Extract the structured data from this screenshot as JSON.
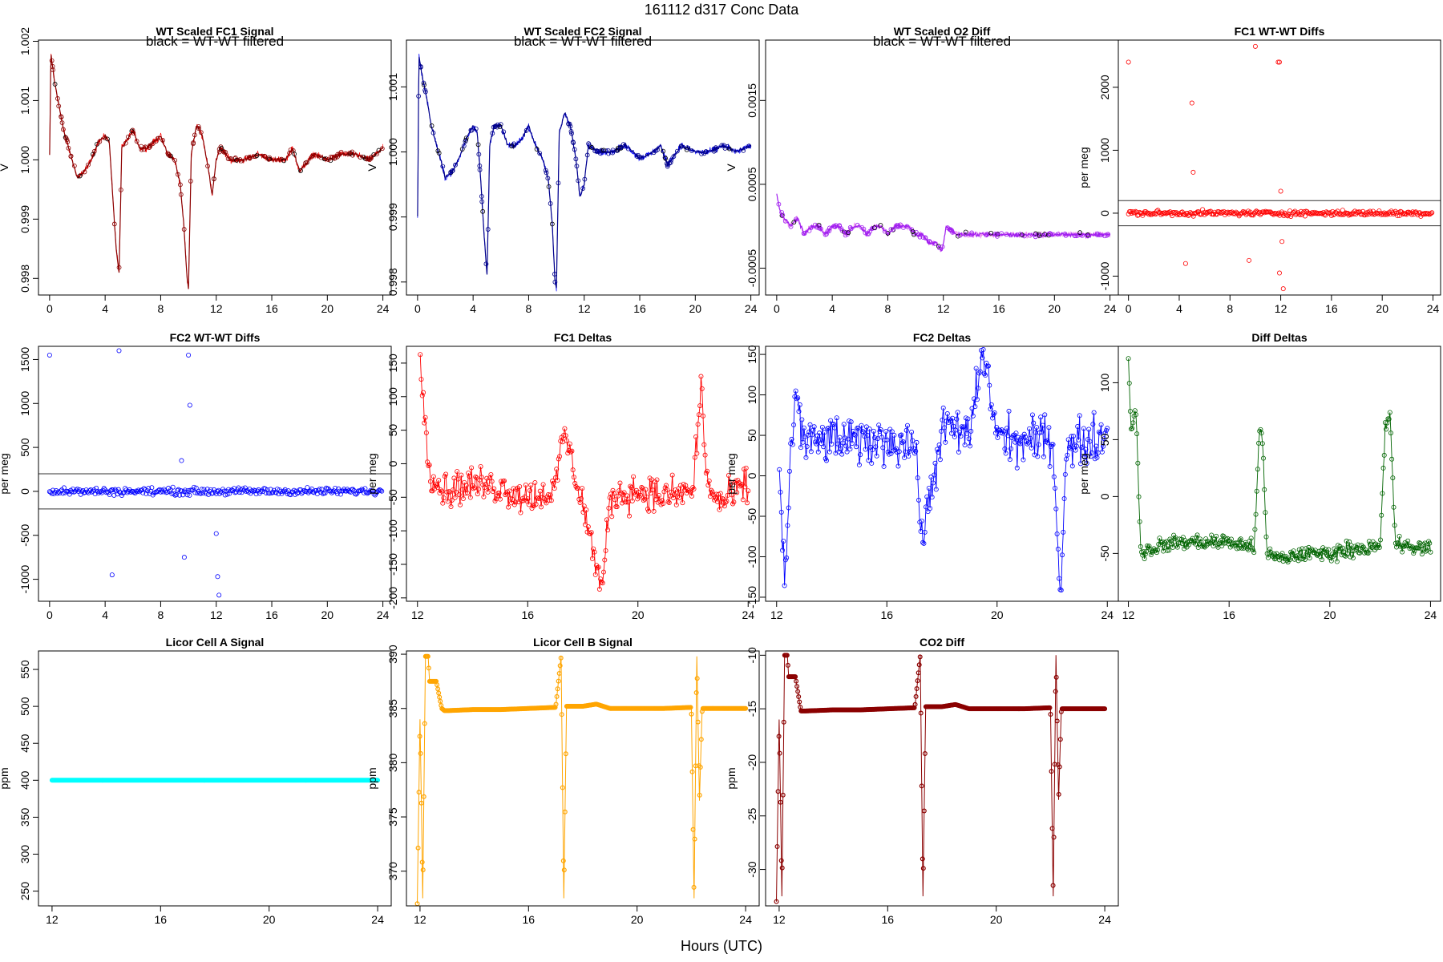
{
  "figure": {
    "title": "161112   d317   Conc Data",
    "x_axis_label": "Hours (UTC)"
  },
  "chart_data": [
    {
      "id": "fc1-signal",
      "type": "line",
      "title": "WT Scaled FC1 Signal",
      "annotation": "black = WT-WT filtered",
      "ylabel": "V",
      "xlim": [
        -0.8,
        24.6
      ],
      "ylim": [
        0.99772,
        1.00202
      ],
      "xticks": [
        0,
        4,
        8,
        12,
        16,
        20,
        24
      ],
      "yticks": [
        0.998,
        0.999,
        1.0,
        1.001,
        1.002
      ],
      "ytick_labels": [
        "0.998",
        "0.999",
        "1.000",
        "1.001",
        "1.002"
      ],
      "colors": {
        "line": "#ff0000",
        "points": "#8b0000",
        "filtered": "#000000"
      },
      "series": [
        {
          "name": "signal",
          "x": [
            0.0,
            0.1,
            0.3,
            0.6,
            1.0,
            1.5,
            2.0,
            2.5,
            3.0,
            3.5,
            4.0,
            4.3,
            4.6,
            4.8,
            5.0,
            5.2,
            5.5,
            6.0,
            6.5,
            7.0,
            7.5,
            8.0,
            8.5,
            9.0,
            9.4,
            9.7,
            9.9,
            10.0,
            10.2,
            10.6,
            11.0,
            11.4,
            11.7,
            12.0,
            12.3,
            13.0,
            14.0,
            15.0,
            16.0,
            17.0,
            17.5,
            18.0,
            19.0,
            20.0,
            21.0,
            22.0,
            23.0,
            24.0
          ],
          "y": [
            1.0001,
            1.0018,
            1.0014,
            1.001,
            1.0005,
            1.0001,
            0.9997,
            0.9998,
            1.0,
            1.0003,
            1.0004,
            1.0003,
            0.9992,
            0.9985,
            0.9981,
            1.0002,
            1.0003,
            1.0005,
            1.0002,
            1.0002,
            1.0003,
            1.0004,
            1.0001,
            1.0,
            0.9996,
            0.9988,
            0.998,
            0.9978,
            1.0001,
            1.0006,
            1.0004,
            0.9999,
            0.9994,
            1.0,
            1.0002,
            1.0,
            1.0,
            1.0001,
            1.0,
            1.0,
            1.0002,
            0.9998,
            1.0001,
            1.0,
            1.0001,
            1.0001,
            1.0,
            1.0002
          ]
        }
      ]
    },
    {
      "id": "fc2-signal",
      "type": "line",
      "title": "WT Scaled FC2 Signal",
      "annotation": "black = WT-WT filtered",
      "ylabel": "V",
      "xlim": [
        -0.8,
        24.6
      ],
      "ylim": [
        0.9978,
        1.00172
      ],
      "xticks": [
        0,
        4,
        8,
        12,
        16,
        20,
        24
      ],
      "yticks": [
        0.998,
        0.999,
        1.0,
        1.001
      ],
      "ytick_labels": [
        "0.998",
        "0.999",
        "1.000",
        "1.001"
      ],
      "colors": {
        "line": "#0000ff",
        "points": "#00008b",
        "filtered": "#000000"
      },
      "series": [
        {
          "name": "signal",
          "x": [
            0.0,
            0.1,
            0.3,
            0.6,
            1.0,
            1.5,
            2.0,
            2.5,
            3.0,
            3.5,
            4.0,
            4.3,
            4.6,
            4.8,
            5.0,
            5.2,
            5.5,
            6.0,
            6.5,
            7.0,
            7.5,
            8.0,
            8.5,
            9.0,
            9.4,
            9.7,
            9.9,
            10.0,
            10.2,
            10.6,
            11.0,
            11.4,
            11.7,
            12.0,
            12.3,
            13.0,
            14.0,
            15.0,
            16.0,
            17.0,
            17.5,
            18.0,
            19.0,
            20.0,
            21.0,
            22.0,
            23.0,
            24.0
          ],
          "y": [
            0.999,
            1.0015,
            1.0012,
            1.0009,
            1.0004,
            1.0,
            0.9996,
            0.9997,
            0.9999,
            1.0002,
            1.0004,
            1.0003,
            0.9994,
            0.9987,
            0.9981,
            1.0001,
            1.0004,
            1.0004,
            1.0001,
            1.0001,
            1.0002,
            1.0004,
            1.0001,
            0.9999,
            0.9996,
            0.9989,
            0.998,
            0.9979,
            1.0003,
            1.0006,
            1.0004,
            0.9999,
            0.9993,
            0.9995,
            1.0001,
            1.0,
            1.0,
            1.0001,
            0.9999,
            1.0,
            1.0001,
            0.9998,
            1.0001,
            1.0,
            1.0,
            1.0001,
            1.0,
            1.0001
          ]
        }
      ]
    },
    {
      "id": "o2-diff",
      "type": "line",
      "title": "WT Scaled O2 Diff",
      "annotation": "black = WT-WT filtered",
      "ylabel": "V",
      "xlim": [
        -0.8,
        24.6
      ],
      "ylim": [
        -0.00082,
        0.00222
      ],
      "xticks": [
        0,
        4,
        8,
        12,
        16,
        20,
        24
      ],
      "yticks": [
        -0.0005,
        0.0005,
        0.0015
      ],
      "ytick_labels": [
        "-0.0005",
        "0.0005",
        "0.0015"
      ],
      "colors": {
        "line": "#ee82ee",
        "points": "#a020f0",
        "filtered": "#000000"
      },
      "series": [
        {
          "name": "signal",
          "x": [
            0.0,
            0.2,
            0.5,
            1.0,
            1.5,
            2.0,
            2.5,
            3.0,
            3.5,
            4.0,
            4.5,
            5.0,
            5.5,
            6.0,
            6.5,
            7.0,
            7.5,
            8.0,
            8.5,
            9.0,
            9.5,
            10.0,
            10.5,
            11.0,
            11.5,
            11.9,
            12.2,
            13.0,
            14.0,
            15.0,
            16.0,
            17.0,
            18.0,
            19.0,
            20.0,
            21.0,
            22.0,
            23.0,
            24.0
          ],
          "y": [
            0.0004,
            0.0002,
            0.0001,
            0.0,
            0.0001,
            -0.0001,
            0.0,
            0.0,
            -0.0001,
            0.0,
            0.0,
            -0.0001,
            0.0,
            0.0,
            -0.0001,
            0.0,
            0.0,
            -0.0001,
            0.0,
            0.0,
            0.0,
            -0.0001,
            -0.0001,
            -0.0002,
            -0.0002,
            -0.0003,
            0.0,
            -0.0001,
            -0.0001,
            -0.0001,
            -0.0001,
            -0.0001,
            -0.0001,
            -0.0001,
            -0.0001,
            -0.0001,
            -0.0001,
            -0.0001,
            -0.0001
          ]
        }
      ]
    },
    {
      "id": "fc1-wtwt",
      "type": "scatter",
      "title": "FC1 WT-WT Diffs",
      "ylabel": "per meg",
      "xlim": [
        -0.8,
        24.6
      ],
      "ylim": [
        -1300,
        2750
      ],
      "xticks": [
        0,
        4,
        8,
        12,
        16,
        20,
        24
      ],
      "yticks": [
        -1000,
        0,
        1000,
        2000
      ],
      "ytick_labels": [
        "-1000",
        "0",
        "1000",
        "2000"
      ],
      "hlines": [
        200,
        -200
      ],
      "colors": {
        "points": "#ff0000"
      },
      "outliers_x": [
        0.0,
        4.5,
        5.0,
        5.1,
        9.5,
        10.0,
        11.8,
        11.9,
        12.0,
        12.1,
        12.2,
        11.9
      ],
      "outliers_y": [
        2400,
        -800,
        1750,
        650,
        -750,
        2650,
        2400,
        2400,
        350,
        -450,
        -1200,
        -950
      ]
    },
    {
      "id": "fc2-wtwt",
      "type": "scatter",
      "title": "FC2 WT-WT Diffs",
      "ylabel": "per meg",
      "xlim": [
        -0.8,
        24.6
      ],
      "ylim": [
        -1250,
        1650
      ],
      "xticks": [
        0,
        4,
        8,
        12,
        16,
        20,
        24
      ],
      "yticks": [
        -1000,
        -500,
        0,
        500,
        1000,
        1500
      ],
      "ytick_labels": [
        "-1000",
        "-500",
        "0",
        "500",
        "1000",
        "1500"
      ],
      "hlines": [
        200,
        -200
      ],
      "colors": {
        "points": "#0000ff"
      },
      "outliers_x": [
        0.0,
        4.5,
        5.0,
        9.5,
        9.7,
        10.0,
        10.1,
        12.0,
        12.1,
        12.2
      ],
      "outliers_y": [
        1550,
        -950,
        1600,
        350,
        -750,
        1550,
        980,
        -480,
        -970,
        -1180
      ]
    },
    {
      "id": "fc1-deltas",
      "type": "line",
      "title": "FC1 Deltas",
      "ylabel": "per meg",
      "xlim": [
        11.6,
        24.4
      ],
      "ylim": [
        -205,
        175
      ],
      "xticks": [
        12,
        16,
        20,
        24
      ],
      "yticks": [
        -200,
        -150,
        -100,
        -50,
        0,
        50,
        100,
        150
      ],
      "ytick_labels": [
        "-200",
        "-150",
        "-100",
        "-50",
        "0",
        "50",
        "100",
        "150"
      ],
      "colors": {
        "line": "#ff0000"
      },
      "keypoints_x": [
        12.1,
        12.2,
        12.3,
        12.5,
        13.0,
        14.0,
        15.0,
        16.0,
        17.0,
        17.3,
        18.0,
        18.7,
        19.0,
        20.0,
        21.0,
        22.0,
        22.3,
        22.5,
        23.0,
        24.0
      ],
      "keypoints_y": [
        165,
        100,
        60,
        -20,
        -40,
        -30,
        -35,
        -50,
        -40,
        50,
        -60,
        -190,
        -50,
        -40,
        -50,
        -40,
        120,
        -30,
        -60,
        -30
      ],
      "amplitude": 38
    },
    {
      "id": "fc2-deltas",
      "type": "line",
      "title": "FC2 Deltas",
      "ylabel": "per meg",
      "xlim": [
        11.6,
        24.4
      ],
      "ylim": [
        -155,
        160
      ],
      "xticks": [
        12,
        16,
        20,
        24
      ],
      "yticks": [
        -150,
        -100,
        -50,
        0,
        50,
        100,
        150
      ],
      "ytick_labels": [
        "-150",
        "-100",
        "-50",
        "0",
        "50",
        "100",
        "150"
      ],
      "colors": {
        "line": "#0000ff"
      },
      "keypoints_x": [
        12.1,
        12.3,
        12.5,
        12.7,
        13.0,
        14.0,
        15.0,
        16.0,
        17.0,
        17.3,
        18.0,
        19.0,
        19.5,
        20.0,
        21.0,
        22.0,
        22.3,
        22.5,
        23.0,
        24.0
      ],
      "keypoints_y": [
        0,
        -140,
        30,
        100,
        40,
        45,
        40,
        45,
        40,
        -80,
        60,
        50,
        155,
        50,
        40,
        50,
        -145,
        30,
        40,
        50
      ],
      "amplitude": 42
    },
    {
      "id": "diff-deltas",
      "type": "line",
      "title": "Diff Deltas",
      "ylabel": "per meg",
      "xlim": [
        11.6,
        24.4
      ],
      "ylim": [
        -92,
        132
      ],
      "xticks": [
        12,
        16,
        20,
        24
      ],
      "yticks": [
        -50,
        0,
        50,
        100
      ],
      "ytick_labels": [
        "-50",
        "0",
        "50",
        "100"
      ],
      "colors": {
        "line": "#006400"
      },
      "keypoints_x": [
        12.0,
        12.1,
        12.3,
        12.5,
        13.0,
        14.0,
        15.0,
        16.0,
        17.0,
        17.2,
        17.3,
        17.5,
        18.0,
        19.0,
        20.0,
        21.0,
        22.0,
        22.2,
        22.4,
        22.6,
        23.0,
        24.0
      ],
      "keypoints_y": [
        125,
        60,
        75,
        -50,
        -45,
        -40,
        -40,
        -40,
        -45,
        60,
        60,
        -50,
        -55,
        -50,
        -50,
        -45,
        -45,
        60,
        70,
        -40,
        -45,
        -45
      ],
      "amplitude": 10
    },
    {
      "id": "licor-a",
      "type": "line",
      "title": "Licor Cell A Signal",
      "ylabel": "ppm",
      "xlim": [
        11.5,
        24.5
      ],
      "ylim": [
        230,
        575
      ],
      "xticks": [
        12,
        16,
        20,
        24
      ],
      "yticks": [
        250,
        300,
        350,
        400,
        450,
        500,
        550
      ],
      "ytick_labels": [
        "250",
        "300",
        "350",
        "400",
        "450",
        "500",
        "550"
      ],
      "colors": {
        "line": "#00ffff"
      },
      "x": [
        12.0,
        24.0
      ],
      "y": [
        400,
        400
      ]
    },
    {
      "id": "licor-b",
      "type": "line",
      "title": "Licor Cell B Signal",
      "ylabel": "ppm",
      "xlim": [
        11.5,
        24.5
      ],
      "ylim": [
        366.8,
        390.3
      ],
      "xticks": [
        12,
        16,
        20,
        24
      ],
      "yticks": [
        370,
        375,
        380,
        385,
        390
      ],
      "ytick_labels": [
        "370",
        "375",
        "380",
        "385",
        "390"
      ],
      "colors": {
        "line": "#ffa500"
      },
      "x": [
        11.9,
        12.0,
        12.05,
        12.1,
        12.2,
        12.3,
        12.35,
        12.45,
        12.6,
        12.8,
        12.9,
        13.0,
        14.0,
        15.0,
        16.0,
        17.0,
        17.2,
        17.3,
        17.4,
        17.5,
        18.0,
        18.5,
        19.0,
        20.0,
        21.0,
        22.0,
        22.1,
        22.2,
        22.3,
        22.4,
        22.5,
        23.0,
        24.0
      ],
      "y": [
        367.0,
        384.0,
        376.5,
        367.5,
        389.8,
        389.8,
        387.5,
        387.5,
        387.5,
        385.0,
        384.8,
        384.8,
        384.9,
        384.9,
        385.0,
        385.1,
        389.8,
        367.5,
        385.2,
        385.2,
        385.2,
        385.4,
        385.0,
        385.0,
        385.0,
        385.1,
        367.5,
        389.8,
        376.5,
        385.0,
        385.0,
        385.0,
        385.0
      ]
    },
    {
      "id": "co2-diff",
      "type": "line",
      "title": "CO2 Diff",
      "ylabel": "ppm",
      "xlim": [
        11.5,
        24.5
      ],
      "ylim": [
        -33.4,
        -9.6
      ],
      "xticks": [
        12,
        16,
        20,
        24
      ],
      "yticks": [
        -30,
        -25,
        -20,
        -15,
        -10
      ],
      "ytick_labels": [
        "-30",
        "-25",
        "-20",
        "-15",
        "-10"
      ],
      "colors": {
        "line": "#8b0000"
      },
      "x": [
        11.9,
        12.0,
        12.05,
        12.1,
        12.2,
        12.3,
        12.35,
        12.45,
        12.6,
        12.8,
        12.9,
        13.0,
        14.0,
        15.0,
        16.0,
        17.0,
        17.2,
        17.3,
        17.4,
        17.5,
        18.0,
        18.5,
        19.0,
        20.0,
        21.0,
        22.0,
        22.1,
        22.2,
        22.3,
        22.4,
        22.5,
        23.0,
        24.0
      ],
      "y": [
        -33.0,
        -16.0,
        -23.5,
        -32.5,
        -10.0,
        -10.0,
        -12.0,
        -12.0,
        -12.0,
        -15.2,
        -15.2,
        -15.2,
        -15.1,
        -15.1,
        -15.0,
        -14.9,
        -10.0,
        -32.5,
        -14.8,
        -14.8,
        -14.8,
        -14.6,
        -15.0,
        -15.0,
        -15.0,
        -14.9,
        -32.5,
        -10.0,
        -23.5,
        -15.0,
        -15.0,
        -15.0,
        -15.0
      ]
    }
  ]
}
